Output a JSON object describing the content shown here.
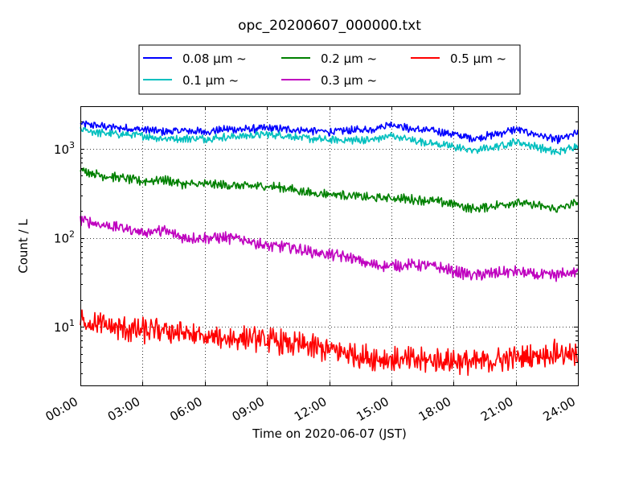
{
  "chart_data": {
    "type": "line",
    "title": "opc_20200607_000000.txt",
    "xlabel": "Time on 2020-06-07 (JST)",
    "ylabel": "Count / L",
    "x_axis": {
      "type": "time",
      "unit": "hours",
      "range": [
        0,
        24
      ],
      "ticks": [
        0,
        3,
        6,
        9,
        12,
        15,
        18,
        21,
        24
      ],
      "tick_labels": [
        "00:00",
        "03:00",
        "06:00",
        "09:00",
        "12:00",
        "15:00",
        "18:00",
        "21:00",
        "24:00"
      ]
    },
    "y_axis": {
      "scale": "log",
      "range": [
        2.2,
        3000
      ],
      "ticks": [
        10,
        100,
        1000
      ],
      "tick_base": "10",
      "tick_exponents": [
        "1",
        "2",
        "3"
      ]
    },
    "grid": true,
    "legend": {
      "placement": "top",
      "columns": 3
    },
    "series": [
      {
        "name": "0.08 μm ~",
        "color": "#0000ff",
        "x": [
          0,
          1,
          2,
          3,
          4,
          5,
          6,
          7,
          8,
          9,
          10,
          11,
          12,
          13,
          14,
          15,
          16,
          17,
          18,
          19,
          20,
          21,
          22,
          23,
          24
        ],
        "y": [
          1900,
          1800,
          1700,
          1650,
          1550,
          1600,
          1550,
          1650,
          1650,
          1700,
          1650,
          1600,
          1550,
          1600,
          1650,
          1900,
          1650,
          1600,
          1450,
          1300,
          1450,
          1650,
          1450,
          1250,
          1500
        ]
      },
      {
        "name": "0.1 μm ~",
        "color": "#00bfbf",
        "x": [
          0,
          1,
          2,
          3,
          4,
          5,
          6,
          7,
          8,
          9,
          10,
          11,
          12,
          13,
          14,
          15,
          16,
          17,
          18,
          19,
          20,
          21,
          22,
          23,
          24
        ],
        "y": [
          1650,
          1500,
          1450,
          1400,
          1300,
          1300,
          1300,
          1350,
          1400,
          1450,
          1400,
          1300,
          1250,
          1250,
          1250,
          1400,
          1250,
          1150,
          1050,
          950,
          1050,
          1200,
          1050,
          900,
          1100
        ]
      },
      {
        "name": "0.2 μm ~",
        "color": "#008000",
        "x": [
          0,
          1,
          2,
          3,
          4,
          5,
          6,
          7,
          8,
          9,
          10,
          11,
          12,
          13,
          14,
          15,
          16,
          17,
          18,
          19,
          20,
          21,
          22,
          23,
          24
        ],
        "y": [
          580,
          500,
          470,
          430,
          450,
          400,
          400,
          390,
          380,
          380,
          360,
          320,
          310,
          300,
          280,
          280,
          270,
          260,
          240,
          210,
          230,
          250,
          230,
          210,
          250
        ]
      },
      {
        "name": "0.3 μm ~",
        "color": "#bf00bf",
        "x": [
          0,
          1,
          2,
          3,
          4,
          5,
          6,
          7,
          8,
          9,
          10,
          11,
          12,
          13,
          14,
          15,
          16,
          17,
          18,
          19,
          20,
          21,
          22,
          23,
          24
        ],
        "y": [
          160,
          140,
          130,
          115,
          120,
          100,
          100,
          100,
          95,
          80,
          80,
          70,
          65,
          60,
          50,
          48,
          50,
          48,
          42,
          38,
          40,
          42,
          38,
          38,
          42
        ]
      },
      {
        "name": "0.5 μm ~",
        "color": "#ff0000",
        "x": [
          0,
          1,
          2,
          3,
          4,
          5,
          6,
          7,
          8,
          9,
          10,
          11,
          12,
          13,
          14,
          15,
          16,
          17,
          18,
          19,
          20,
          21,
          22,
          23,
          24
        ],
        "y": [
          12,
          10.5,
          9.5,
          9,
          9,
          8.5,
          7.5,
          7.5,
          7.5,
          7,
          6.5,
          6,
          5.5,
          5,
          4.5,
          4.3,
          4.2,
          4.2,
          4.2,
          4,
          4.2,
          4.5,
          4.8,
          5.2,
          4.5
        ]
      }
    ]
  }
}
